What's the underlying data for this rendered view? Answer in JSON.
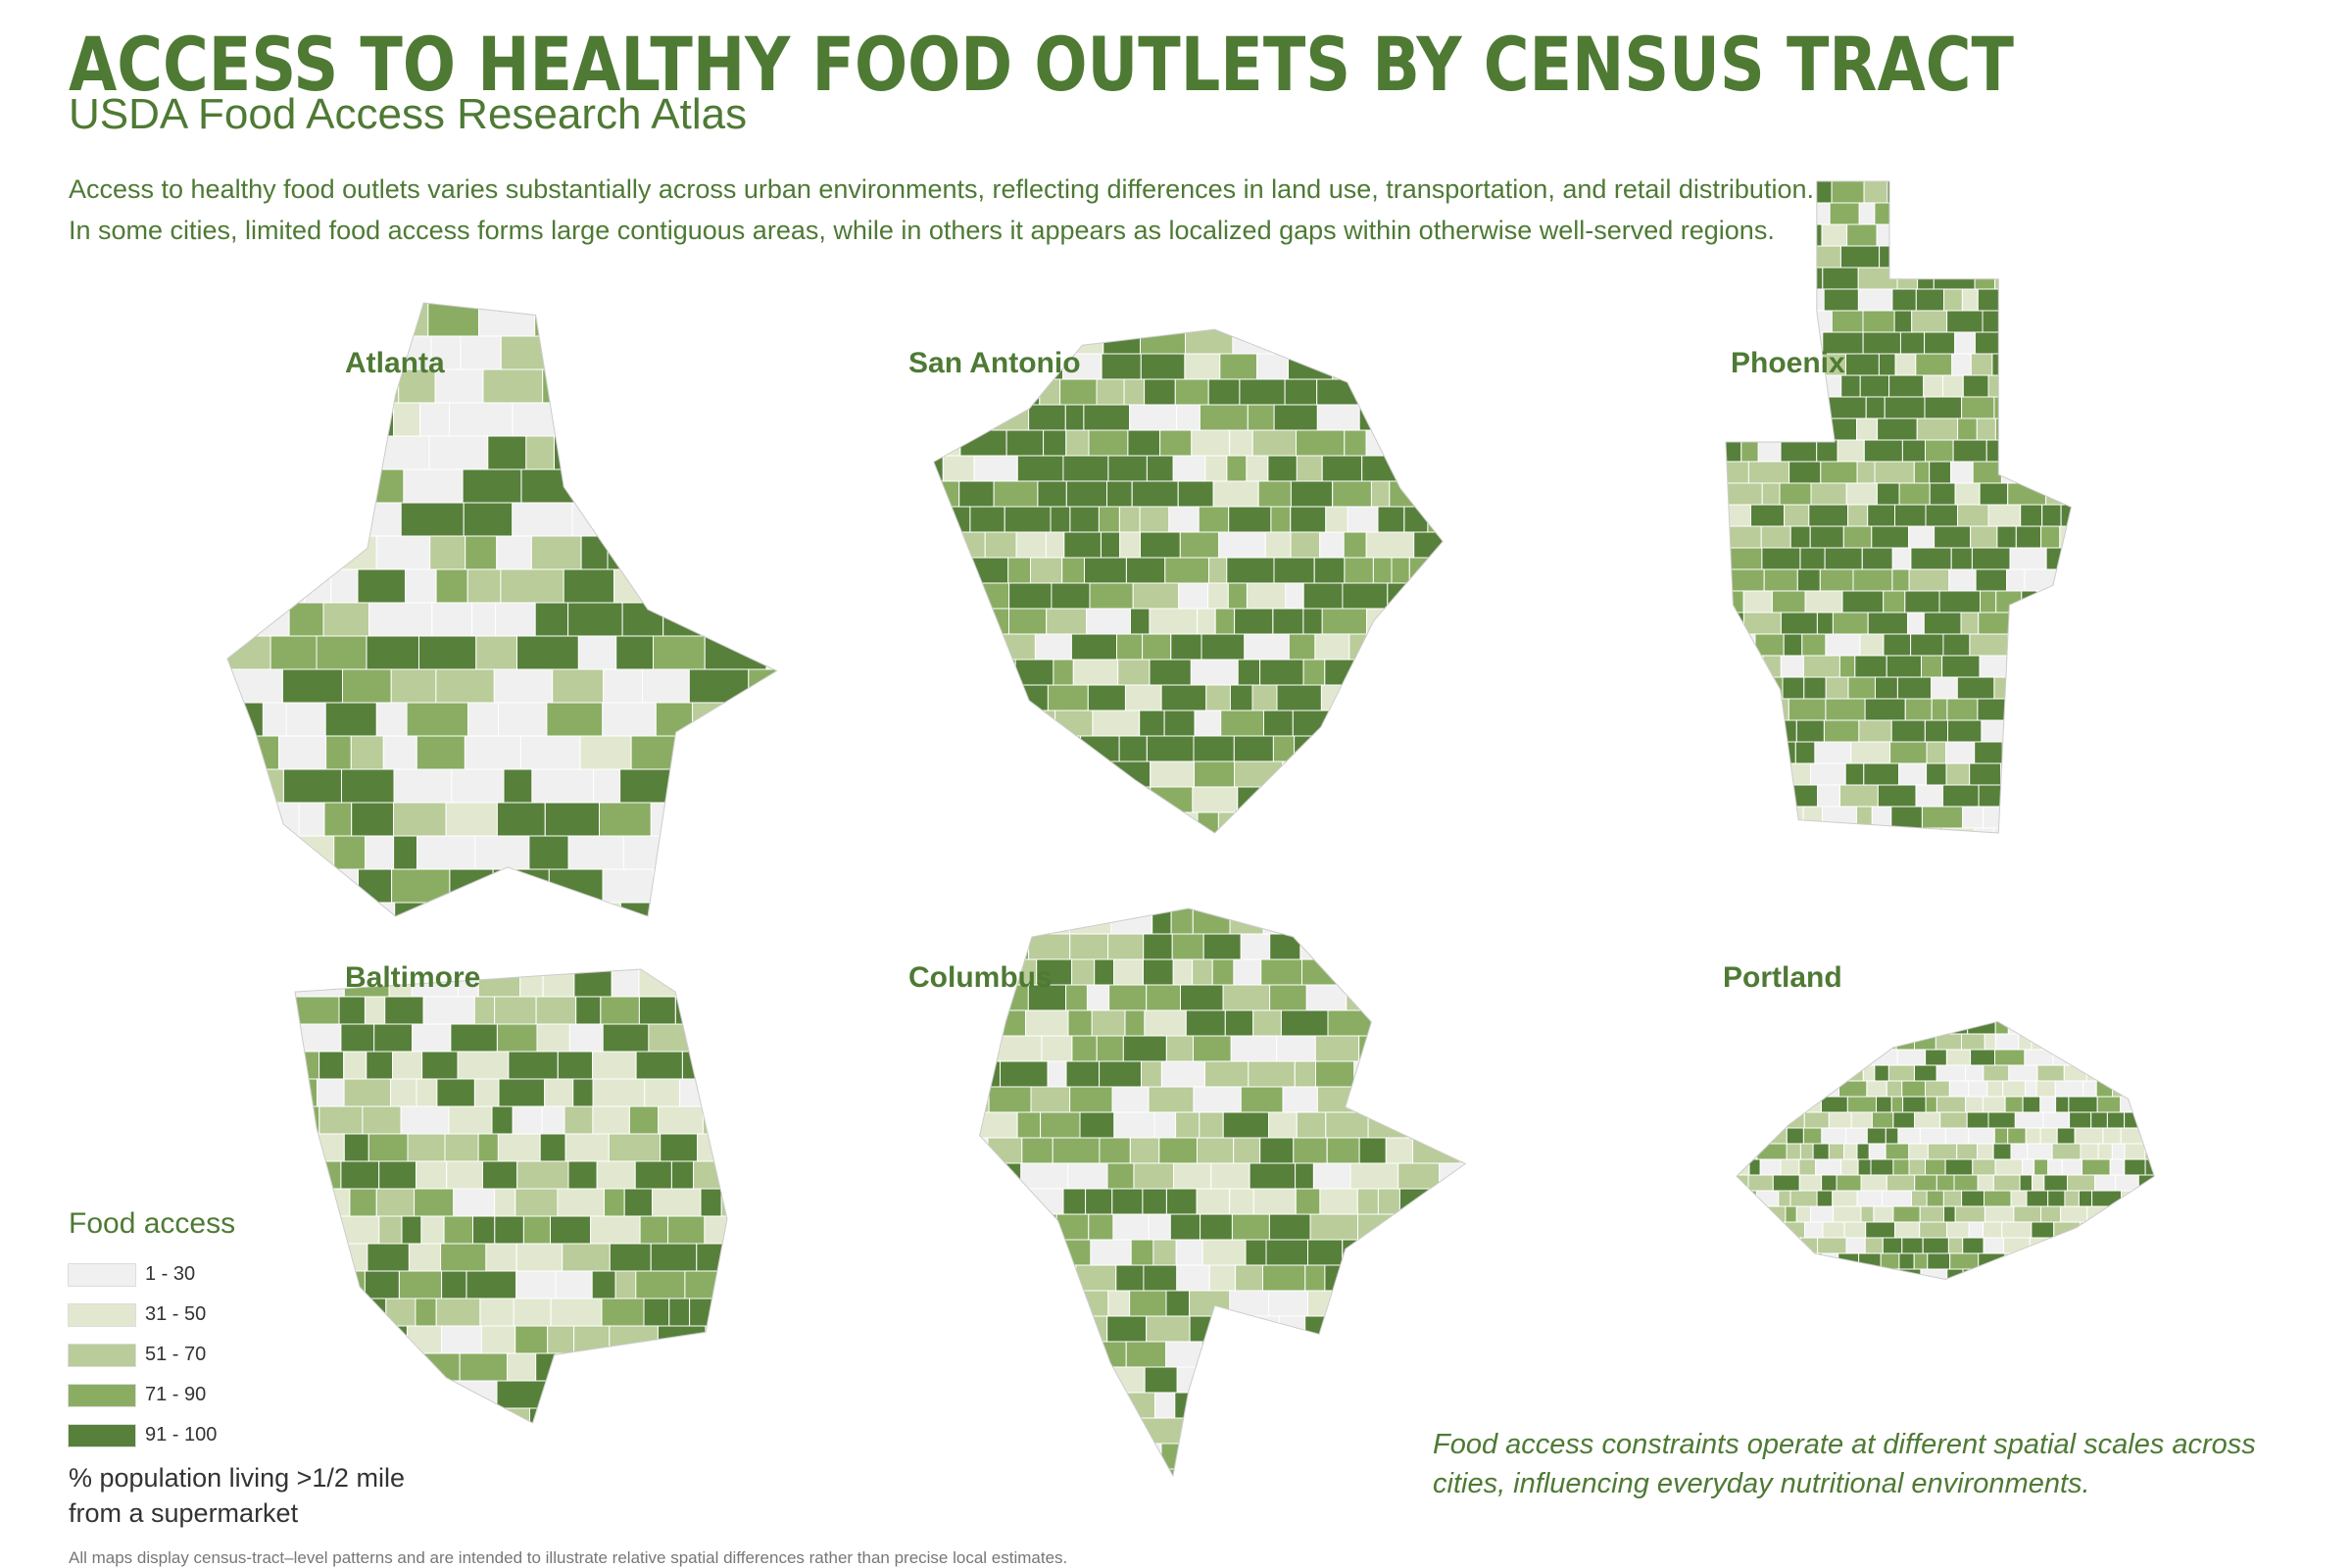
{
  "header": {
    "title": "ACCESS TO HEALTHY FOOD OUTLETS BY CENSUS TRACT",
    "subtitle": "USDA Food Access Research Atlas",
    "intro": "Access to healthy food outlets varies substantially across urban environments, reflecting differences in land use, transportation, and retail distribution. In some cities, limited food access forms large contiguous areas, while in others it appears as localized gaps within otherwise well-served regions."
  },
  "maps": [
    {
      "city": "Atlanta"
    },
    {
      "city": "San Antonio"
    },
    {
      "city": "Phoenix"
    },
    {
      "city": "Baltimore"
    },
    {
      "city": "Columbus"
    },
    {
      "city": "Portland"
    }
  ],
  "legend": {
    "title": "Food access",
    "classes": [
      {
        "label": "1 - 30",
        "color": "#f0f0f0"
      },
      {
        "label": "31 - 50",
        "color": "#e2e8cf"
      },
      {
        "label": "51 - 70",
        "color": "#b9cc99"
      },
      {
        "label": "71 - 90",
        "color": "#8aad63"
      },
      {
        "label": "91 - 100",
        "color": "#57803a"
      }
    ],
    "note": "% population living >1/2 mile from a supermarket"
  },
  "callout": "Food access constraints operate at different spatial scales across cities, influencing everyday nutritional environments.",
  "footnote": "All maps display census-tract–level patterns and are intended to illustrate relative spatial differences rather than precise local estimates."
}
